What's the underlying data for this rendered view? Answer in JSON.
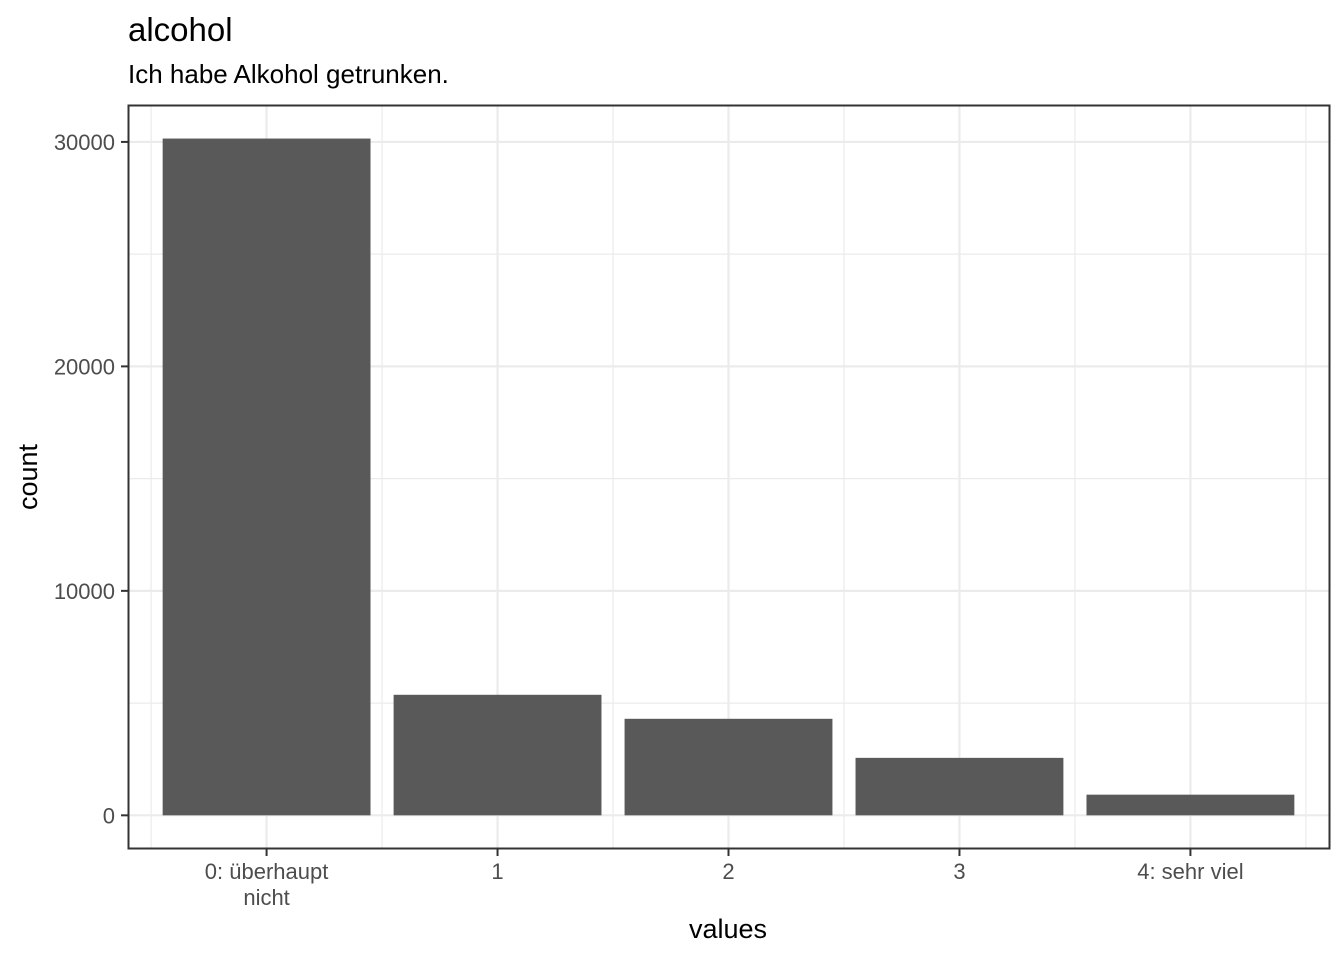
{
  "chart_data": {
    "type": "bar",
    "title": "alcohol",
    "subtitle": "Ich habe Alkohol getrunken.",
    "xlabel": "values",
    "ylabel": "count",
    "categories": [
      [
        "0: überhaupt",
        "nicht"
      ],
      [
        "1"
      ],
      [
        "2"
      ],
      [
        "3"
      ],
      [
        "4: sehr viel"
      ]
    ],
    "values": [
      30150,
      5370,
      4300,
      2560,
      920
    ],
    "ylim": [
      -1500,
      31600
    ],
    "yticks": [
      0,
      10000,
      20000,
      30000
    ],
    "ytick_labels": [
      "0",
      "10000",
      "20000",
      "30000"
    ],
    "grid": true,
    "legend": "none",
    "colors": {
      "bar": "#595959",
      "grid": "#ebebeb",
      "panel_border": "#333333",
      "tick_mark": "#333333"
    }
  }
}
